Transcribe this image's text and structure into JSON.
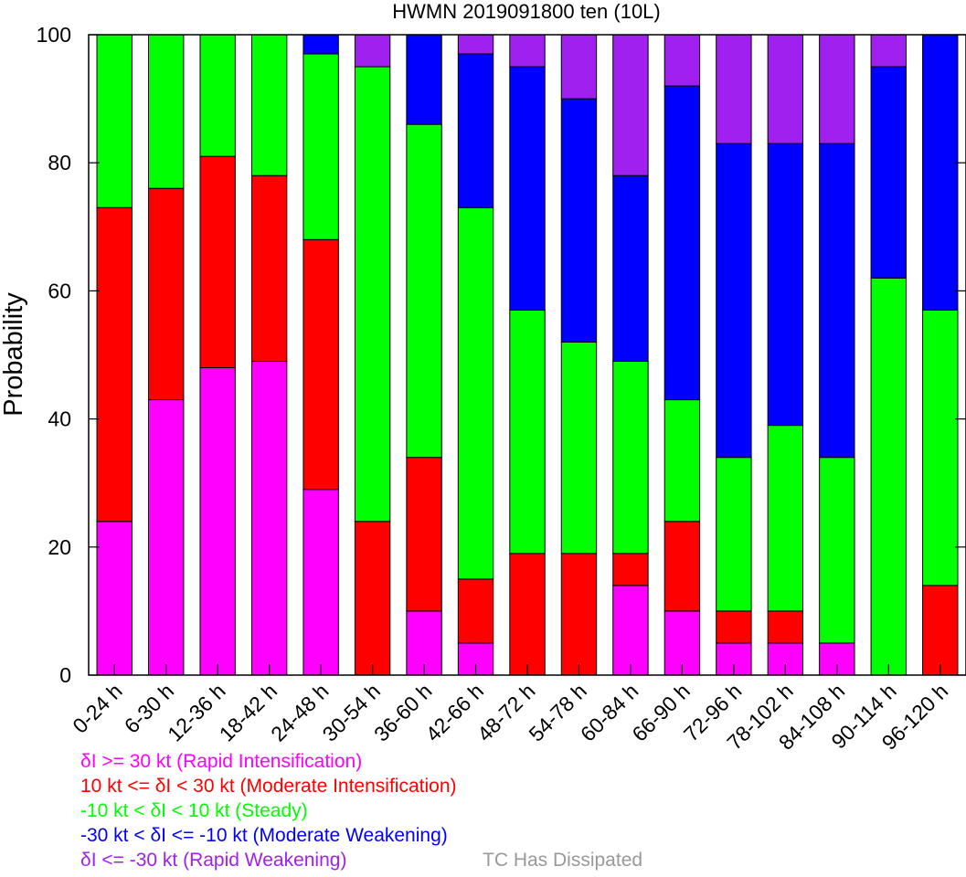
{
  "chart_data": {
    "type": "bar",
    "stacked": true,
    "title": "HWMN 2019091800 ten (10L)",
    "ylabel": "Probability",
    "xlabel": "",
    "ylim": [
      0,
      100
    ],
    "yticks": [
      "0",
      "20",
      "40",
      "60",
      "80",
      "100"
    ],
    "categories": [
      "0-24 h",
      "6-30 h",
      "12-36 h",
      "18-42 h",
      "24-48 h",
      "30-54 h",
      "36-60 h",
      "42-66 h",
      "48-72 h",
      "54-78 h",
      "60-84 h",
      "66-90 h",
      "72-96 h",
      "78-102 h",
      "84-108 h",
      "90-114 h",
      "96-120 h"
    ],
    "series": [
      {
        "name": "δI >= 30 kt (Rapid Intensification)",
        "color": "#ff00ff",
        "values": [
          24,
          43,
          48,
          49,
          29,
          0,
          10,
          5,
          0,
          0,
          14,
          10,
          5,
          5,
          5,
          0,
          0
        ]
      },
      {
        "name": "10 kt <= δI < 30 kt (Moderate Intensification)",
        "color": "#ff0000",
        "values": [
          49,
          33,
          33,
          29,
          39,
          24,
          24,
          10,
          19,
          19,
          5,
          14,
          5,
          5,
          0,
          0,
          14
        ]
      },
      {
        "name": "-10 kt < δI < 10 kt (Steady)",
        "color": "#00ff00",
        "values": [
          27,
          24,
          19,
          22,
          29,
          71,
          52,
          58,
          38,
          33,
          30,
          19,
          24,
          29,
          29,
          62,
          43
        ]
      },
      {
        "name": "-30 kt < δI <= -10 kt (Moderate Weakening)",
        "color": "#0000ff",
        "values": [
          0,
          0,
          0,
          0,
          3,
          0,
          14,
          24,
          38,
          38,
          29,
          49,
          49,
          44,
          49,
          33,
          43
        ]
      },
      {
        "name": "δI <= -30 kt (Rapid Weakening)",
        "color": "#a020f0",
        "values": [
          0,
          0,
          0,
          0,
          0,
          5,
          0,
          3,
          5,
          10,
          22,
          8,
          17,
          17,
          17,
          5,
          0
        ]
      }
    ],
    "dissipated": {
      "name": "TC Has Dissipated",
      "color": "#999999",
      "values": [
        0,
        0,
        0,
        0,
        0,
        0,
        0,
        0,
        0,
        0,
        0,
        0,
        0,
        0,
        0,
        0,
        0
      ]
    }
  }
}
